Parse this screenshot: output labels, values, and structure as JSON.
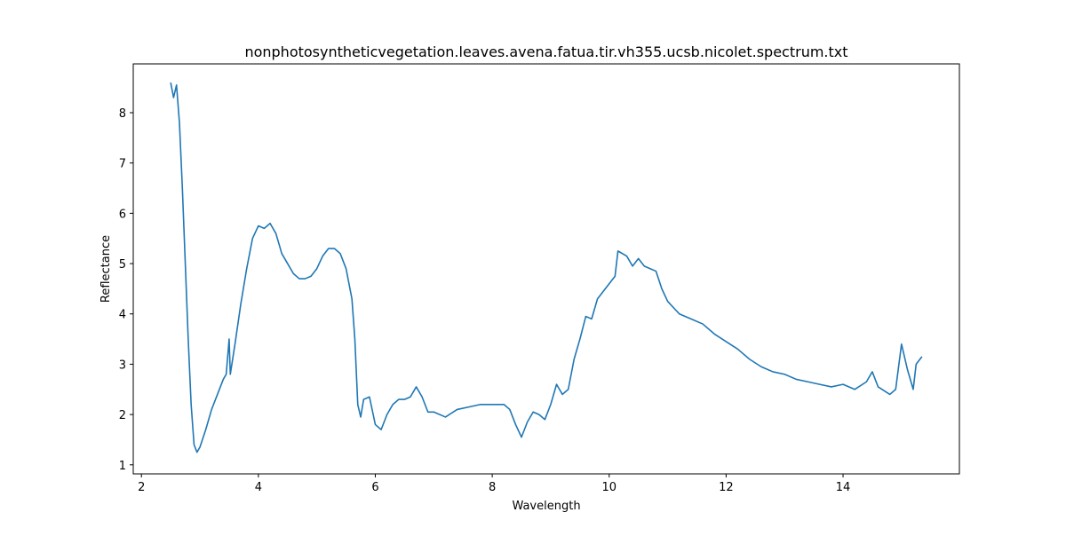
{
  "chart_data": {
    "type": "line",
    "title": "nonphotosyntheticvegetation.leaves.avena.fatua.tir.vh355.ucsb.nicolet.spectrum.txt",
    "x_label": "Wavelength",
    "y_label": "Reflectance",
    "xlim": [
      1.86,
      15.99
    ],
    "ylim": [
      0.82,
      8.97
    ],
    "xticks": [
      2,
      4,
      6,
      8,
      10,
      12,
      14
    ],
    "yticks": [
      1,
      2,
      3,
      4,
      5,
      6,
      7,
      8
    ],
    "series": [
      {
        "color": "#1f77b4",
        "x": [
          2.5,
          2.55,
          2.6,
          2.65,
          2.7,
          2.75,
          2.8,
          2.85,
          2.9,
          2.95,
          3.0,
          3.1,
          3.2,
          3.3,
          3.4,
          3.45,
          3.5,
          3.52,
          3.6,
          3.7,
          3.8,
          3.9,
          4.0,
          4.1,
          4.2,
          4.3,
          4.4,
          4.5,
          4.6,
          4.7,
          4.8,
          4.9,
          5.0,
          5.1,
          5.2,
          5.3,
          5.4,
          5.5,
          5.6,
          5.65,
          5.7,
          5.75,
          5.8,
          5.9,
          6.0,
          6.1,
          6.2,
          6.3,
          6.4,
          6.5,
          6.6,
          6.7,
          6.8,
          6.9,
          7.0,
          7.2,
          7.4,
          7.6,
          7.8,
          8.0,
          8.2,
          8.3,
          8.4,
          8.5,
          8.6,
          8.7,
          8.8,
          8.9,
          9.0,
          9.1,
          9.2,
          9.3,
          9.4,
          9.5,
          9.6,
          9.7,
          9.8,
          9.9,
          10.0,
          10.1,
          10.15,
          10.3,
          10.4,
          10.5,
          10.6,
          10.7,
          10.8,
          10.9,
          11.0,
          11.2,
          11.4,
          11.6,
          11.8,
          12.0,
          12.2,
          12.4,
          12.6,
          12.8,
          13.0,
          13.2,
          13.4,
          13.6,
          13.8,
          14.0,
          14.2,
          14.4,
          14.5,
          14.6,
          14.8,
          14.9,
          15.0,
          15.1,
          15.2,
          15.25,
          15.35
        ],
        "values": [
          8.6,
          8.3,
          8.55,
          7.8,
          6.5,
          5.0,
          3.5,
          2.2,
          1.4,
          1.25,
          1.35,
          1.7,
          2.1,
          2.4,
          2.7,
          2.8,
          3.5,
          2.8,
          3.4,
          4.2,
          4.9,
          5.5,
          5.75,
          5.7,
          5.8,
          5.6,
          5.2,
          5.0,
          4.8,
          4.7,
          4.7,
          4.75,
          4.9,
          5.15,
          5.3,
          5.3,
          5.2,
          4.9,
          4.3,
          3.5,
          2.2,
          1.95,
          2.3,
          2.35,
          1.8,
          1.7,
          2.0,
          2.2,
          2.3,
          2.3,
          2.35,
          2.55,
          2.35,
          2.05,
          2.05,
          1.95,
          2.1,
          2.15,
          2.2,
          2.2,
          2.2,
          2.1,
          1.8,
          1.55,
          1.85,
          2.05,
          2.0,
          1.9,
          2.2,
          2.6,
          2.4,
          2.5,
          3.1,
          3.5,
          3.95,
          3.9,
          4.3,
          4.45,
          4.6,
          4.75,
          5.25,
          5.15,
          4.95,
          5.1,
          4.95,
          4.9,
          4.85,
          4.5,
          4.25,
          4.0,
          3.9,
          3.8,
          3.6,
          3.45,
          3.3,
          3.1,
          2.95,
          2.85,
          2.8,
          2.7,
          2.65,
          2.6,
          2.55,
          2.6,
          2.5,
          2.65,
          2.85,
          2.55,
          2.4,
          2.5,
          3.4,
          2.9,
          2.5,
          3.0,
          3.15
        ]
      }
    ]
  }
}
